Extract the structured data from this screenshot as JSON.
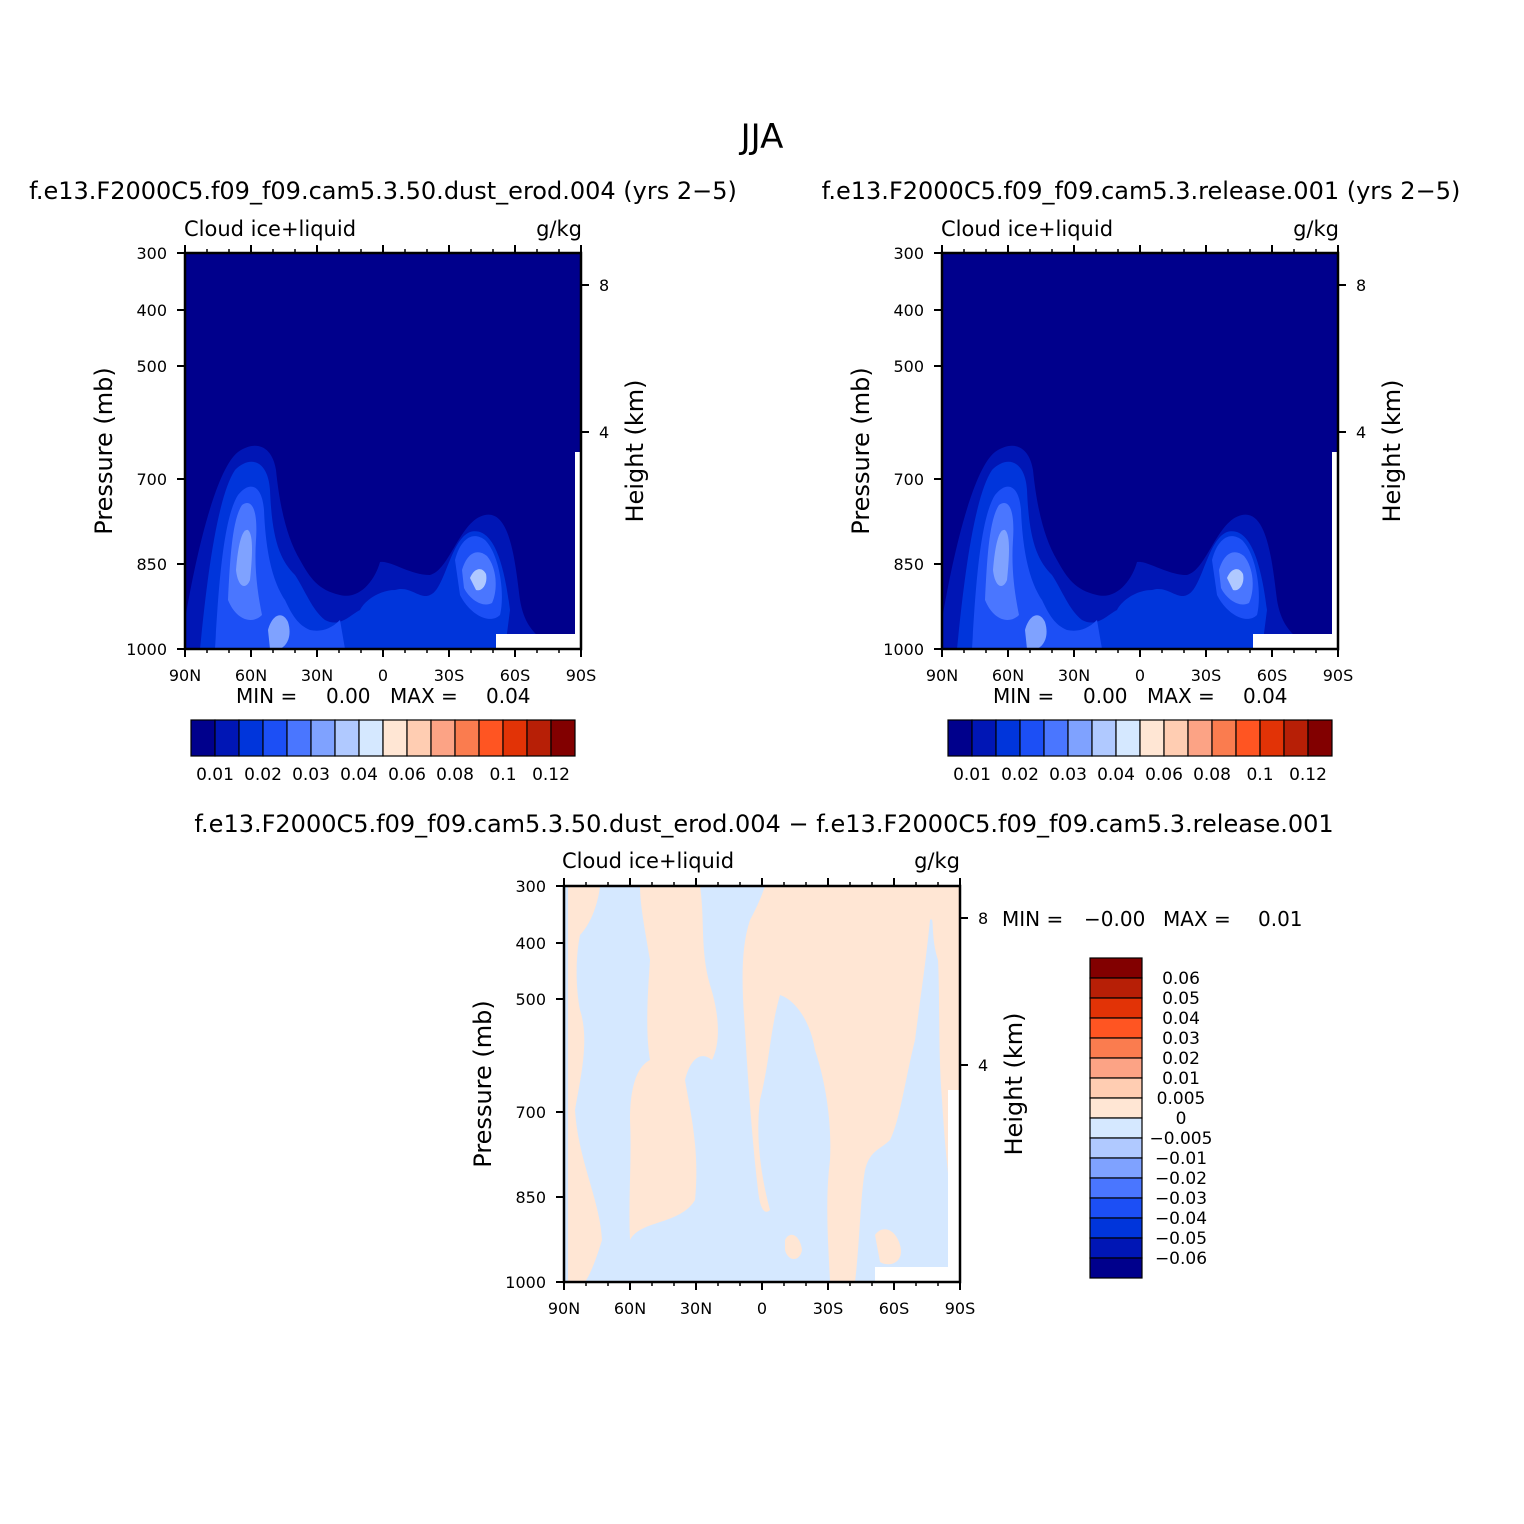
{
  "figure": {
    "title": "JJA"
  },
  "chart_data": [
    {
      "type": "heatmap",
      "id": "panel-left",
      "title": "f.e13.F2000C5.f09_f09.cam5.3.50.dust_erod.004 (yrs 2−5)",
      "left_string": "Cloud ice+liquid",
      "right_string": "g/kg",
      "ylabel": "Pressure (mb)",
      "ylabel_right": "Height (km)",
      "x_ticks": [
        "90N",
        "60N",
        "30N",
        "0",
        "30S",
        "60S",
        "90S"
      ],
      "y_ticks": [
        "300",
        "400",
        "500",
        "700",
        "850",
        "1000"
      ],
      "y2_ticks": [
        "8",
        "4"
      ],
      "min_label": "MIN =",
      "min_value": "0.00",
      "max_label": "MAX =",
      "max_value": "0.04",
      "colorbar": {
        "orientation": "horizontal",
        "labels": [
          "0.01",
          "0.02",
          "0.03",
          "0.04",
          "0.06",
          "0.08",
          "0.1",
          "0.12"
        ],
        "colors": [
          "#00008c",
          "#0016b5",
          "#0035db",
          "#1c4ff5",
          "#4a76ff",
          "#7fa2ff",
          "#b0c9ff",
          "#d5e8ff",
          "#ffe6d4",
          "#ffcdb2",
          "#fca385",
          "#fa7c4f",
          "#ff5522",
          "#e23306",
          "#b71f06",
          "#820000"
        ]
      },
      "max_blob_colors": [
        "#1c4ff5",
        "#4a76ff",
        "#7fa2ff",
        "#b0c9ff"
      ]
    },
    {
      "type": "heatmap",
      "id": "panel-right",
      "title": "f.e13.F2000C5.f09_f09.cam5.3.release.001 (yrs 2−5)",
      "left_string": "Cloud ice+liquid",
      "right_string": "g/kg",
      "ylabel": "Pressure (mb)",
      "ylabel_right": "Height (km)",
      "x_ticks": [
        "90N",
        "60N",
        "30N",
        "0",
        "30S",
        "60S",
        "90S"
      ],
      "y_ticks": [
        "300",
        "400",
        "500",
        "700",
        "850",
        "1000"
      ],
      "y2_ticks": [
        "8",
        "4"
      ],
      "min_label": "MIN =",
      "min_value": "0.00",
      "max_label": "MAX =",
      "max_value": "0.04",
      "colorbar": {
        "orientation": "horizontal",
        "labels": [
          "0.01",
          "0.02",
          "0.03",
          "0.04",
          "0.06",
          "0.08",
          "0.1",
          "0.12"
        ],
        "colors": [
          "#00008c",
          "#0016b5",
          "#0035db",
          "#1c4ff5",
          "#4a76ff",
          "#7fa2ff",
          "#b0c9ff",
          "#d5e8ff",
          "#ffe6d4",
          "#ffcdb2",
          "#fca385",
          "#fa7c4f",
          "#ff5522",
          "#e23306",
          "#b71f06",
          "#820000"
        ]
      }
    },
    {
      "type": "heatmap",
      "id": "panel-diff",
      "title": "f.e13.F2000C5.f09_f09.cam5.3.50.dust_erod.004 − f.e13.F2000C5.f09_f09.cam5.3.release.001",
      "left_string": "Cloud ice+liquid",
      "right_string": "g/kg",
      "ylabel": "Pressure (mb)",
      "ylabel_right": "Height (km)",
      "x_ticks": [
        "90N",
        "60N",
        "30N",
        "0",
        "30S",
        "60S",
        "90S"
      ],
      "y_ticks": [
        "300",
        "400",
        "500",
        "700",
        "850",
        "1000"
      ],
      "y2_ticks": [
        "8",
        "4"
      ],
      "min_label": "MIN =",
      "min_value": "−0.00",
      "max_label": "MAX =",
      "max_value": "0.01",
      "colorbar": {
        "orientation": "vertical",
        "labels": [
          "0.06",
          "0.05",
          "0.04",
          "0.03",
          "0.02",
          "0.01",
          "0.005",
          "0",
          "−0.005",
          "−0.01",
          "−0.02",
          "−0.03",
          "−0.04",
          "−0.05",
          "−0.06"
        ],
        "colors": [
          "#820000",
          "#b71f06",
          "#e23306",
          "#ff5522",
          "#fa7c4f",
          "#fca385",
          "#ffcdb2",
          "#ffe6d4",
          "#d5e8ff",
          "#b0c9ff",
          "#7fa2ff",
          "#4a76ff",
          "#1c4ff5",
          "#0035db",
          "#0016b5",
          "#00008c"
        ]
      }
    }
  ],
  "colors": {
    "low_navy": "#00008c",
    "level2": "#0016b5",
    "level3": "#0035db",
    "level4": "#1c4ff5",
    "level5": "#4a76ff",
    "level6": "#7fa2ff",
    "level7": "#b0c9ff",
    "diff_pos": "#ffe6d4",
    "diff_neg": "#d5e8ff"
  }
}
